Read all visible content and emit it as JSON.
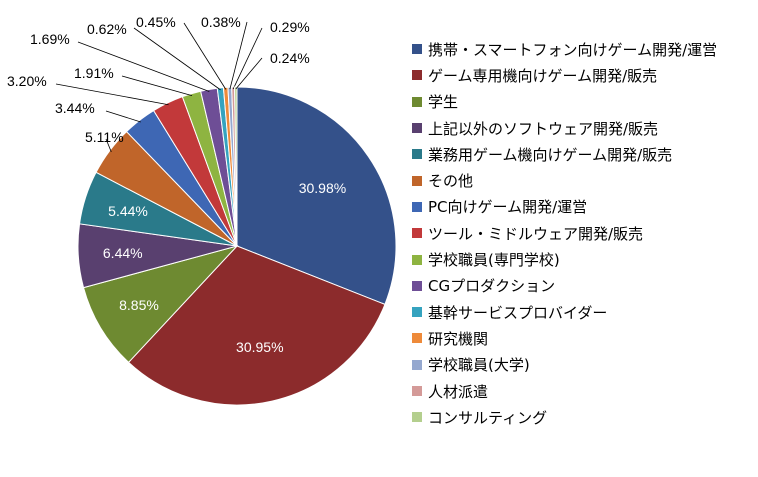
{
  "chart_data": {
    "type": "pie",
    "title": "",
    "categories": [
      "携帯・スマートフォン向けゲーム開発/運営",
      "ゲーム専用機向けゲーム開発/販売",
      "学生",
      "上記以外のソフトウェア開発/販売",
      "業務用ゲーム機向けゲーム開発/販売",
      "その他",
      "PC向けゲーム開発/運営",
      "ツール・ミドルウェア開発/販売",
      "学校職員(専門学校)",
      "CGプロダクション",
      "基幹サービスプロバイダー",
      "研究機関",
      "学校職員(大学)",
      "人材派遣",
      "コンサルティング"
    ],
    "values": [
      30.98,
      30.95,
      8.85,
      6.44,
      5.44,
      5.11,
      3.44,
      3.2,
      1.91,
      1.69,
      0.62,
      0.45,
      0.38,
      0.29,
      0.24
    ],
    "data_labels": [
      "30.98%",
      "30.95%",
      "8.85%",
      "6.44%",
      "5.44%",
      "5.11%",
      "3.44%",
      "3.20%",
      "1.91%",
      "1.69%",
      "0.62%",
      "0.45%",
      "0.38%",
      "0.29%",
      "0.24%"
    ],
    "colors": [
      "#34518A",
      "#8C2B2C",
      "#6E8A31",
      "#59406F",
      "#2A7A8A",
      "#C0652A",
      "#3E67B4",
      "#C2393A",
      "#8EB441",
      "#6E4E96",
      "#35A3BF",
      "#EE8A3A",
      "#95A8CF",
      "#D49A98",
      "#B4CF8E"
    ],
    "legend_position": "right"
  }
}
